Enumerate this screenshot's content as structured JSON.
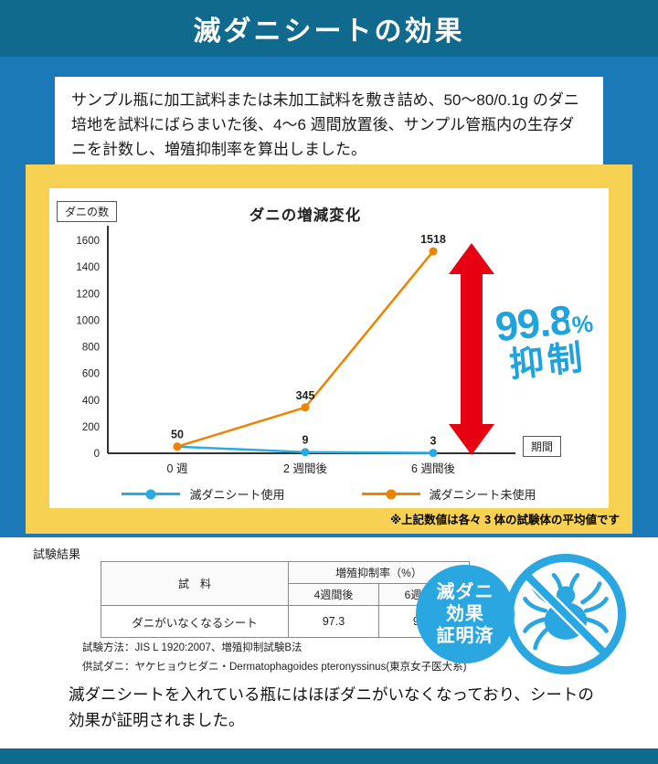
{
  "header": {
    "title": "滅ダニシートの効果"
  },
  "intro": {
    "text": "サンプル瓶に加工試料または未加工試料を敷き詰め、50〜80/0.1g のダニ培地を試料にばらまいた後、4〜6 週間放置後、サンプル管瓶内の生存ダニを計数し、増殖抑制率を算出しました。"
  },
  "chart_data": {
    "type": "line",
    "title": "ダニの増減変化",
    "y_axis_label": "ダニの数",
    "x_axis_label": "期間",
    "categories": [
      "0 週",
      "2 週間後",
      "6 週間後"
    ],
    "series": [
      {
        "name": "滅ダニシート使用",
        "values": [
          50,
          9,
          3
        ],
        "color": "#29abe2"
      },
      {
        "name": "滅ダニシート未使用",
        "values": [
          50,
          345,
          1518
        ],
        "color": "#ef8200"
      }
    ],
    "ylim": [
      0,
      1600
    ],
    "ytick_step": 200,
    "grid": false,
    "legend_position": "bottom",
    "annotation": {
      "rate": "99.8",
      "percent": "%",
      "label": "抑制",
      "arrow_color": "#e60012"
    },
    "note": "※上記数値は各々 3 体の試験体の平均値です"
  },
  "results": {
    "section_label": "試験結果",
    "table": {
      "col_header_sample": "試　料",
      "col_header_rate": "増殖抑制率（%）",
      "sub_headers": [
        "4週間後",
        "6週間後"
      ],
      "rows": [
        {
          "sample": "ダニがいなくなるシート",
          "values": [
            "97.3",
            "99.8"
          ]
        }
      ]
    },
    "method": "試験方法：JIS L 1920:2007、増殖抑制試験B法",
    "mite_info": "供試ダニ：ヤケヒョウヒダニ・Dermatophagoides pteronyssinus(東京女子医大系)",
    "badge": {
      "lines": [
        "滅ダニ",
        "効果",
        "証明済"
      ]
    },
    "conclusion": "滅ダニシートを入れている瓶にはほぼダニがいなくなっており、シートの効果が証明されました。"
  },
  "colors": {
    "header_bg": "#0f6a8e",
    "body_bg": "#1b79b8",
    "panel_bg": "#f6d152",
    "arrow": "#e60012",
    "badge": "#2aa7e0",
    "rate_text": "#1fa3dd"
  }
}
